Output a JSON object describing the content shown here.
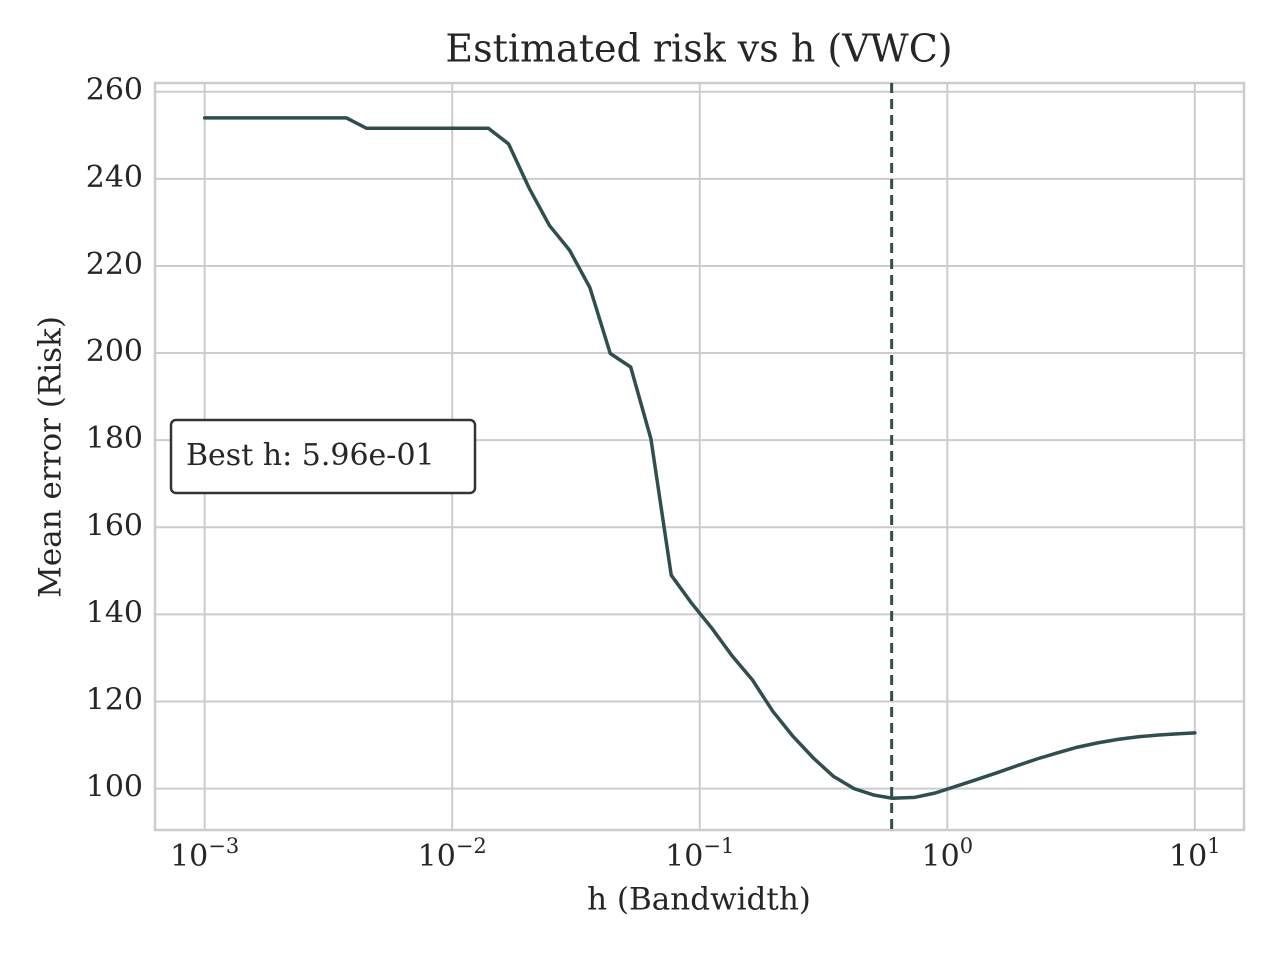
{
  "chart_data": {
    "type": "line",
    "title": "Estimated risk vs h (VWC)",
    "xlabel": "h (Bandwidth)",
    "ylabel": "Mean error (Risk)",
    "xscale": "log",
    "xlim": [
      0.00063,
      15.8
    ],
    "ylim": [
      90.5,
      262
    ],
    "grid": true,
    "x_ticks": [
      {
        "base": "10",
        "exp": "−3",
        "value": 0.001
      },
      {
        "base": "10",
        "exp": "−2",
        "value": 0.01
      },
      {
        "base": "10",
        "exp": "−1",
        "value": 0.1
      },
      {
        "base": "10",
        "exp": "0",
        "value": 1
      },
      {
        "base": "10",
        "exp": "1",
        "value": 10
      }
    ],
    "y_ticks": [
      "100",
      "120",
      "140",
      "160",
      "180",
      "200",
      "220",
      "240",
      "260"
    ],
    "colors": {
      "line": "#2f4f4f",
      "grid": "#cccccc",
      "spine": "#cccccc",
      "annotation_border": "#333333"
    },
    "series": [
      {
        "x": [
          0.001,
          0.0012,
          0.00145,
          0.00176,
          0.00212,
          0.00256,
          0.00309,
          0.00373,
          0.00451,
          0.00545,
          0.00658,
          0.00795,
          0.0096,
          0.0116,
          0.014,
          0.0169,
          0.0204,
          0.0247,
          0.0298,
          0.036,
          0.0435,
          0.0526,
          0.0635,
          0.0767,
          0.0926,
          0.112,
          0.135,
          0.163,
          0.197,
          0.238,
          0.288,
          0.347,
          0.42,
          0.507,
          0.596,
          0.74,
          0.894,
          1.08,
          1.3,
          1.58,
          1.9,
          2.3,
          2.78,
          3.35,
          4.05,
          4.89,
          5.91,
          7.14,
          8.62,
          10.0
        ],
        "y": [
          254.0,
          254.0,
          254.0,
          254.0,
          254.0,
          254.0,
          254.0,
          254.0,
          251.6,
          251.6,
          251.6,
          251.6,
          251.6,
          251.6,
          251.6,
          248.0,
          238.0,
          229.3,
          223.6,
          215.0,
          199.9,
          196.8,
          180.3,
          149.0,
          142.6,
          136.8,
          130.5,
          125.0,
          117.8,
          112.0,
          107.0,
          102.8,
          100.0,
          98.5,
          97.8,
          98.0,
          99.0,
          100.5,
          102.0,
          103.6,
          105.2,
          106.8,
          108.2,
          109.5,
          110.5,
          111.3,
          111.9,
          112.3,
          112.6,
          112.8
        ]
      }
    ],
    "best_h": 0.596,
    "annotation": "Best h: 5.96e-01"
  }
}
